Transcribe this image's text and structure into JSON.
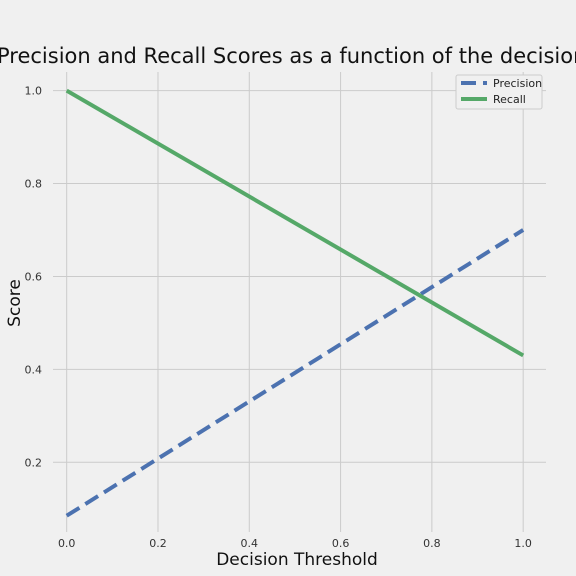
{
  "chart_data": {
    "type": "line",
    "title": "Precision and Recall Scores as a function of the decision threshold",
    "xlabel": "Decision Threshold",
    "ylabel": "Score",
    "xlim": [
      -0.03,
      1.05
    ],
    "ylim": [
      0.05,
      1.04
    ],
    "xticks": [
      "0.0",
      "0.2",
      "0.4",
      "0.6",
      "0.8",
      "1.0"
    ],
    "xtick_values": [
      0.0,
      0.2,
      0.4,
      0.6,
      0.8,
      1.0
    ],
    "yticks": [
      "0.2",
      "0.4",
      "0.6",
      "0.8",
      "1.0"
    ],
    "ytick_values": [
      0.2,
      0.4,
      0.6,
      0.8,
      1.0
    ],
    "grid": true,
    "legend_position": "top-right",
    "series": [
      {
        "name": "Precision",
        "style": "dashed",
        "color": "#4c72b0",
        "x": [
          0.0,
          1.0
        ],
        "y": [
          0.085,
          0.7
        ]
      },
      {
        "name": "Recall",
        "style": "solid",
        "color": "#55a868",
        "x": [
          0.0,
          1.0
        ],
        "y": [
          1.0,
          0.43
        ]
      }
    ]
  }
}
